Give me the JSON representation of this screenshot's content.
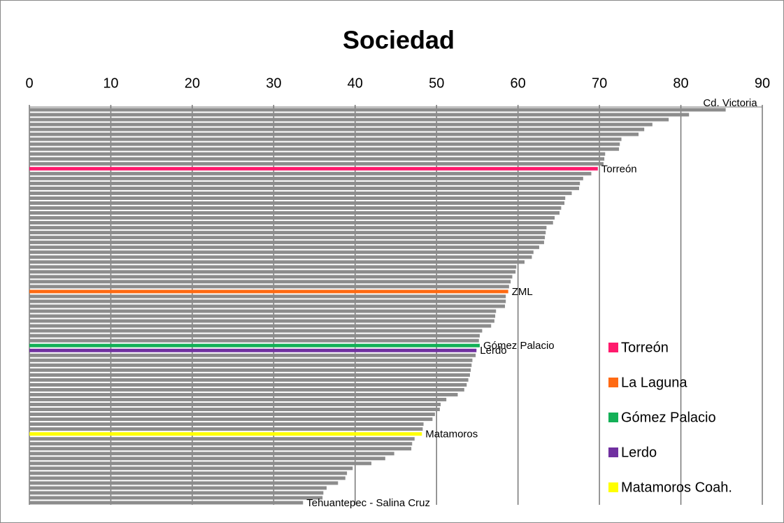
{
  "chart_data": {
    "type": "bar",
    "orientation": "horizontal",
    "title": "Sociedad",
    "categories": [
      "Cd. Victoria",
      null,
      null,
      null,
      null,
      null,
      null,
      null,
      null,
      null,
      null,
      null,
      "Torreón",
      null,
      null,
      null,
      null,
      null,
      null,
      null,
      null,
      null,
      null,
      null,
      null,
      null,
      null,
      null,
      null,
      null,
      null,
      null,
      null,
      null,
      null,
      null,
      null,
      "ZML",
      null,
      null,
      null,
      null,
      null,
      null,
      null,
      null,
      null,
      null,
      "Gómez Palacio",
      "Lerdo",
      null,
      null,
      null,
      null,
      null,
      null,
      null,
      null,
      null,
      null,
      null,
      null,
      null,
      null,
      null,
      null,
      "Matamoros",
      null,
      null,
      null,
      null,
      null,
      null,
      null,
      null,
      null,
      null,
      null,
      null,
      null,
      "Tehuantepec - Salina Cruz"
    ],
    "values": [
      85.5,
      81,
      78.5,
      76.5,
      75.5,
      74.8,
      72.7,
      72.5,
      72.4,
      70.7,
      70.6,
      70.5,
      69.8,
      69,
      68,
      67.6,
      67.5,
      66.6,
      65.8,
      65.7,
      65.3,
      65.1,
      64.5,
      64.3,
      63.5,
      63.4,
      63.3,
      63.2,
      62.6,
      61.9,
      61.7,
      60.8,
      59.8,
      59.7,
      59.3,
      59.1,
      58.9,
      58.8,
      58.5,
      58.5,
      58.4,
      57.3,
      57.2,
      57.1,
      56.7,
      55.6,
      55.3,
      55.2,
      55.3,
      54.9,
      54.8,
      54.4,
      54.3,
      54.2,
      54.1,
      53.9,
      53.7,
      53.4,
      52.6,
      51.2,
      50.5,
      50.4,
      49.8,
      49.5,
      48.4,
      48.3,
      48.2,
      47.3,
      47,
      46.9,
      44.8,
      43.7,
      42,
      39.7,
      39,
      38.8,
      37.9,
      36.5,
      36.1,
      36,
      33.6
    ],
    "colors": [
      "#8c8c8c",
      "#8c8c8c",
      "#8c8c8c",
      "#8c8c8c",
      "#8c8c8c",
      "#8c8c8c",
      "#8c8c8c",
      "#8c8c8c",
      "#8c8c8c",
      "#8c8c8c",
      "#8c8c8c",
      "#8c8c8c",
      "#ff1a6c",
      "#8c8c8c",
      "#8c8c8c",
      "#8c8c8c",
      "#8c8c8c",
      "#8c8c8c",
      "#8c8c8c",
      "#8c8c8c",
      "#8c8c8c",
      "#8c8c8c",
      "#8c8c8c",
      "#8c8c8c",
      "#8c8c8c",
      "#8c8c8c",
      "#8c8c8c",
      "#8c8c8c",
      "#8c8c8c",
      "#8c8c8c",
      "#8c8c8c",
      "#8c8c8c",
      "#8c8c8c",
      "#8c8c8c",
      "#8c8c8c",
      "#8c8c8c",
      "#8c8c8c",
      "#ff6a13",
      "#8c8c8c",
      "#8c8c8c",
      "#8c8c8c",
      "#8c8c8c",
      "#8c8c8c",
      "#8c8c8c",
      "#8c8c8c",
      "#8c8c8c",
      "#8c8c8c",
      "#8c8c8c",
      "#13b057",
      "#7030a0",
      "#8c8c8c",
      "#8c8c8c",
      "#8c8c8c",
      "#8c8c8c",
      "#8c8c8c",
      "#8c8c8c",
      "#8c8c8c",
      "#8c8c8c",
      "#8c8c8c",
      "#8c8c8c",
      "#8c8c8c",
      "#8c8c8c",
      "#8c8c8c",
      "#8c8c8c",
      "#8c8c8c",
      "#8c8c8c",
      "#ffff00",
      "#8c8c8c",
      "#8c8c8c",
      "#8c8c8c",
      "#8c8c8c",
      "#8c8c8c",
      "#8c8c8c",
      "#8c8c8c",
      "#8c8c8c",
      "#8c8c8c",
      "#8c8c8c",
      "#8c8c8c",
      "#8c8c8c",
      "#8c8c8c",
      "#8c8c8c"
    ],
    "legend": [
      {
        "name": "Torreón",
        "color": "#ff1a6c"
      },
      {
        "name": "La Laguna",
        "color": "#ff6a13"
      },
      {
        "name": "Gómez Palacio",
        "color": "#13b057"
      },
      {
        "name": "Lerdo",
        "color": "#7030a0"
      },
      {
        "name": "Matamoros Coah.",
        "color": "#ffff00"
      }
    ],
    "xlim": [
      0,
      90
    ],
    "xticks": [
      0,
      10,
      20,
      30,
      40,
      50,
      60,
      70,
      80,
      90
    ],
    "grid": true
  }
}
